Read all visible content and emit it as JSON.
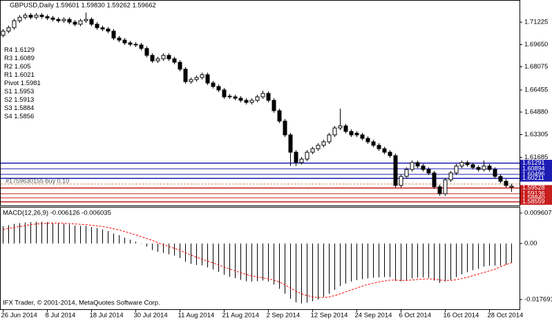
{
  "chart_data": [
    {
      "type": "candlestick",
      "title": "GBPUSD,Daily  1.59601 1.59830 1.59262 1.59662",
      "categories": [
        "26 Jun 2014",
        null,
        null,
        null,
        null,
        null,
        null,
        null,
        "8 Jul 2014",
        null,
        null,
        null,
        null,
        null,
        null,
        null,
        "18 Jul 2014",
        null,
        null,
        null,
        null,
        null,
        null,
        null,
        "30 Jul 2014",
        null,
        null,
        null,
        null,
        null,
        null,
        null,
        "11 Aug 2014",
        null,
        null,
        null,
        null,
        null,
        null,
        null,
        "21 Aug 2014",
        null,
        null,
        null,
        null,
        null,
        null,
        null,
        "2 Sep 2014",
        null,
        null,
        null,
        null,
        null,
        null,
        null,
        "12 Sep 2014",
        null,
        null,
        null,
        null,
        null,
        null,
        null,
        "24 Sep 2014",
        null,
        null,
        null,
        null,
        null,
        null,
        null,
        "6 Oct 2014",
        null,
        null,
        null,
        null,
        null,
        null,
        null,
        "16 Oct 2014",
        null,
        null,
        null,
        null,
        null,
        null,
        null,
        "28 Oct 2014",
        null,
        null,
        null,
        null
      ],
      "open": [
        1.703,
        1.7059,
        1.7084,
        1.7132,
        1.7157,
        1.7171,
        1.7157,
        1.7171,
        1.7162,
        1.7152,
        1.7142,
        1.7132,
        1.7142,
        1.7123,
        1.7108,
        1.7132,
        1.7142,
        1.7108,
        1.7084,
        1.7074,
        1.7059,
        1.701,
        1.6996,
        1.6976,
        1.6966,
        1.6962,
        1.6937,
        1.6888,
        1.6849,
        1.6864,
        1.6888,
        1.6864,
        1.684,
        1.6791,
        1.6703,
        1.6718,
        1.6732,
        1.6752,
        1.6693,
        1.6669,
        1.6645,
        1.66,
        1.6596,
        1.6586,
        1.6572,
        1.6557,
        1.6572,
        1.6596,
        1.662,
        1.6572,
        1.6498,
        1.6425,
        1.6328,
        1.6206,
        1.6133,
        1.6157,
        1.6206,
        1.623,
        1.6255,
        1.6279,
        1.6328,
        1.6376,
        1.6391,
        1.6352,
        1.634,
        1.6328,
        1.6303,
        1.6279,
        1.6255,
        1.623,
        1.6206,
        1.6181,
        1.5972,
        1.6035,
        1.6084,
        1.6133,
        1.6108,
        1.6084,
        1.606,
        1.5962,
        1.5913,
        1.6011,
        1.606,
        1.6108,
        1.6133,
        1.6118,
        1.6099,
        1.6084,
        1.6108,
        1.6084,
        1.6035,
        1.6001,
        1.59601
      ],
      "high": [
        1.7074,
        1.7099,
        1.7147,
        1.7172,
        1.7186,
        1.7186,
        1.7186,
        1.7186,
        1.7177,
        1.7167,
        1.7157,
        1.7157,
        1.7157,
        1.7138,
        1.7147,
        1.719,
        1.7157,
        1.7123,
        1.7099,
        1.7089,
        1.7074,
        1.7025,
        1.7011,
        1.6991,
        1.6981,
        1.6977,
        1.6952,
        1.6903,
        1.6879,
        1.6903,
        1.6903,
        1.6879,
        1.6855,
        1.6806,
        1.6733,
        1.6747,
        1.6767,
        1.6767,
        1.6708,
        1.6684,
        1.666,
        1.6615,
        1.6611,
        1.6601,
        1.6587,
        1.6587,
        1.6611,
        1.664,
        1.6635,
        1.6587,
        1.6513,
        1.644,
        1.6343,
        1.6221,
        1.6172,
        1.6221,
        1.6245,
        1.627,
        1.6294,
        1.6343,
        1.6391,
        1.6513,
        1.6406,
        1.6367,
        1.6355,
        1.6343,
        1.6318,
        1.6294,
        1.627,
        1.6245,
        1.6221,
        1.6196,
        1.605,
        1.6099,
        1.6148,
        1.6148,
        1.6123,
        1.6099,
        1.6075,
        1.5977,
        1.6026,
        1.6075,
        1.6123,
        1.6148,
        1.6148,
        1.6133,
        1.6114,
        1.6148,
        1.6123,
        1.6099,
        1.605,
        1.6016,
        1.5983
      ],
      "low": [
        1.7015,
        1.7044,
        1.7069,
        1.7117,
        1.7142,
        1.7142,
        1.7142,
        1.7147,
        1.7137,
        1.7127,
        1.7117,
        1.7117,
        1.7108,
        1.7093,
        1.7093,
        1.7117,
        1.7093,
        1.7069,
        1.7059,
        1.7044,
        1.6995,
        1.6981,
        1.6961,
        1.6951,
        1.6947,
        1.6922,
        1.6873,
        1.6834,
        1.6834,
        1.6849,
        1.6849,
        1.6825,
        1.6776,
        1.6688,
        1.6688,
        1.6703,
        1.6717,
        1.6678,
        1.6654,
        1.663,
        1.6581,
        1.6581,
        1.6571,
        1.6557,
        1.6542,
        1.6542,
        1.6557,
        1.6581,
        1.6557,
        1.6483,
        1.641,
        1.6313,
        1.6108,
        1.6108,
        1.6118,
        1.6142,
        1.6191,
        1.6215,
        1.624,
        1.6264,
        1.6313,
        1.6361,
        1.6337,
        1.6313,
        1.6313,
        1.6288,
        1.6264,
        1.624,
        1.6215,
        1.6191,
        1.6166,
        1.5957,
        1.5957,
        1.602,
        1.6069,
        1.6093,
        1.6069,
        1.6045,
        1.5947,
        1.5898,
        1.5898,
        1.5996,
        1.6045,
        1.6093,
        1.6103,
        1.6084,
        1.6069,
        1.6069,
        1.6069,
        1.602,
        1.5986,
        1.5957,
        1.59262
      ],
      "close": [
        1.7059,
        1.7084,
        1.7132,
        1.7157,
        1.7171,
        1.7157,
        1.7171,
        1.7162,
        1.7152,
        1.7142,
        1.7132,
        1.7142,
        1.7123,
        1.7108,
        1.7132,
        1.7142,
        1.7108,
        1.7084,
        1.7074,
        1.7059,
        1.701,
        1.6996,
        1.6976,
        1.6966,
        1.6962,
        1.6937,
        1.6888,
        1.6849,
        1.6864,
        1.6888,
        1.6864,
        1.684,
        1.6791,
        1.6703,
        1.6718,
        1.6732,
        1.6752,
        1.6693,
        1.6669,
        1.6645,
        1.6596,
        1.6596,
        1.6586,
        1.6572,
        1.6557,
        1.6572,
        1.6596,
        1.662,
        1.6572,
        1.6498,
        1.6425,
        1.6328,
        1.6206,
        1.6133,
        1.6157,
        1.6206,
        1.623,
        1.6255,
        1.6279,
        1.6328,
        1.6376,
        1.6391,
        1.6352,
        1.6328,
        1.6328,
        1.6303,
        1.6279,
        1.6255,
        1.623,
        1.6206,
        1.6181,
        1.5972,
        1.6035,
        1.6084,
        1.6133,
        1.6108,
        1.6084,
        1.606,
        1.5962,
        1.5913,
        1.6011,
        1.606,
        1.6108,
        1.6133,
        1.6118,
        1.6099,
        1.6084,
        1.6108,
        1.6084,
        1.6035,
        1.6001,
        1.5972,
        1.59662
      ],
      "up_color": "#ffffff",
      "down_color": "#000000",
      "outline_color": "#000000",
      "ylim": [
        1.583,
        1.7274
      ],
      "yticks": [
        1.71225,
        {
          "value": 1.6965,
          "label": "1.69650"
        },
        1.68075,
        1.66455,
        {
          "value": 1.6488,
          "label": "1.64880"
        },
        1.63305,
        1.61685
      ],
      "levels": [
        {
          "name": "R4",
          "value": 1.6129,
          "box_label": "1.61291",
          "color": "#1c1cb4"
        },
        {
          "name": "R3",
          "value": 1.6089,
          "box_label": "1.60894",
          "color": "#1c1cb4"
        },
        {
          "name": "R2",
          "value": 1.605,
          "box_label": "1.60496",
          "color": "#1c1cb4"
        },
        {
          "name": "R1",
          "value": 1.6021,
          "box_label": "1.60211",
          "color": "#1c1cb4"
        },
        {
          "name": "Pivot",
          "value": 1.5981,
          "color": "#c89060",
          "style": "dashed"
        },
        {
          "name": "S1",
          "value": 1.5953,
          "box_label": "1.59528",
          "color": "#c81e1e"
        },
        {
          "name": "S2",
          "value": 1.5913,
          "box_label": "1.59136",
          "color": "#c81e1e"
        },
        {
          "name": "S3",
          "value": 1.5884,
          "box_label": "1.58840",
          "color": "#c81e1e"
        },
        {
          "name": "S4",
          "value": 1.5856,
          "box_label": "1.58559",
          "color": "#c81e1e"
        }
      ],
      "annotation": "#1759630155 buy 0.10"
    },
    {
      "type": "macd",
      "title": "MACD(12,26,9) -0.006126 -0.006035",
      "histogram": [
        0.0055,
        0.0058,
        0.0062,
        0.0065,
        0.0067,
        0.0068,
        0.0069,
        0.0069,
        0.0068,
        0.0066,
        0.0064,
        0.0062,
        0.006,
        0.0057,
        0.0056,
        0.0056,
        0.0053,
        0.0049,
        0.0045,
        0.004,
        0.0032,
        0.0026,
        0.0019,
        0.0012,
        0.0006,
        -0.0001,
        -0.001,
        -0.002,
        -0.0026,
        -0.0029,
        -0.0033,
        -0.0038,
        -0.0046,
        -0.0058,
        -0.0064,
        -0.0067,
        -0.0068,
        -0.0075,
        -0.0082,
        -0.0089,
        -0.0098,
        -0.0104,
        -0.0109,
        -0.0114,
        -0.0119,
        -0.012,
        -0.0119,
        -0.0116,
        -0.012,
        -0.013,
        -0.0143,
        -0.0158,
        -0.0174,
        -0.0185,
        -0.0188,
        -0.0186,
        -0.0182,
        -0.0176,
        -0.0168,
        -0.0158,
        -0.0146,
        -0.0134,
        -0.0126,
        -0.012,
        -0.0115,
        -0.0112,
        -0.011,
        -0.0108,
        -0.0107,
        -0.0106,
        -0.0105,
        -0.0118,
        -0.0119,
        -0.0116,
        -0.011,
        -0.0108,
        -0.0107,
        -0.0108,
        -0.0116,
        -0.0124,
        -0.012,
        -0.0114,
        -0.0106,
        -0.0097,
        -0.009,
        -0.0084,
        -0.0079,
        -0.0073,
        -0.007,
        -0.0069,
        -0.0069,
        -0.0066,
        -0.006126
      ],
      "signal": [
        0.0045,
        0.0048,
        0.0051,
        0.0054,
        0.0057,
        0.006,
        0.0062,
        0.0063,
        0.0064,
        0.0065,
        0.0065,
        0.0064,
        0.0063,
        0.0062,
        0.0061,
        0.006,
        0.0058,
        0.0056,
        0.0054,
        0.0051,
        0.0047,
        0.0043,
        0.0038,
        0.0033,
        0.0028,
        0.0022,
        0.0016,
        0.001,
        0.0003,
        -0.0003,
        -0.0009,
        -0.0015,
        -0.0021,
        -0.0029,
        -0.0036,
        -0.0043,
        -0.0049,
        -0.0055,
        -0.0061,
        -0.0067,
        -0.0074,
        -0.008,
        -0.0086,
        -0.0092,
        -0.0097,
        -0.0102,
        -0.0105,
        -0.0108,
        -0.0111,
        -0.0115,
        -0.0121,
        -0.013,
        -0.014,
        -0.015,
        -0.0158,
        -0.0164,
        -0.0168,
        -0.017,
        -0.017,
        -0.0168,
        -0.0164,
        -0.0158,
        -0.0152,
        -0.0146,
        -0.014,
        -0.0134,
        -0.0129,
        -0.0125,
        -0.0121,
        -0.0118,
        -0.0115,
        -0.0115,
        -0.0116,
        -0.0116,
        -0.0115,
        -0.0113,
        -0.0112,
        -0.0111,
        -0.0112,
        -0.0115,
        -0.0116,
        -0.0116,
        -0.0114,
        -0.011,
        -0.0106,
        -0.0101,
        -0.0096,
        -0.0091,
        -0.0086,
        -0.0081,
        -0.0073,
        -0.0066,
        -0.006035
      ],
      "histogram_color": "#000000",
      "signal_color": "#ff0000",
      "ylim": [
        -0.0207,
        0.0116
      ],
      "yticks": [
        0.009607,
        {
          "value": 0,
          "label": "0.00"
        },
        -0.017691
      ],
      "footer": "IFX Trader, © 2001-2014, MetaQuotes Software Corp."
    }
  ]
}
